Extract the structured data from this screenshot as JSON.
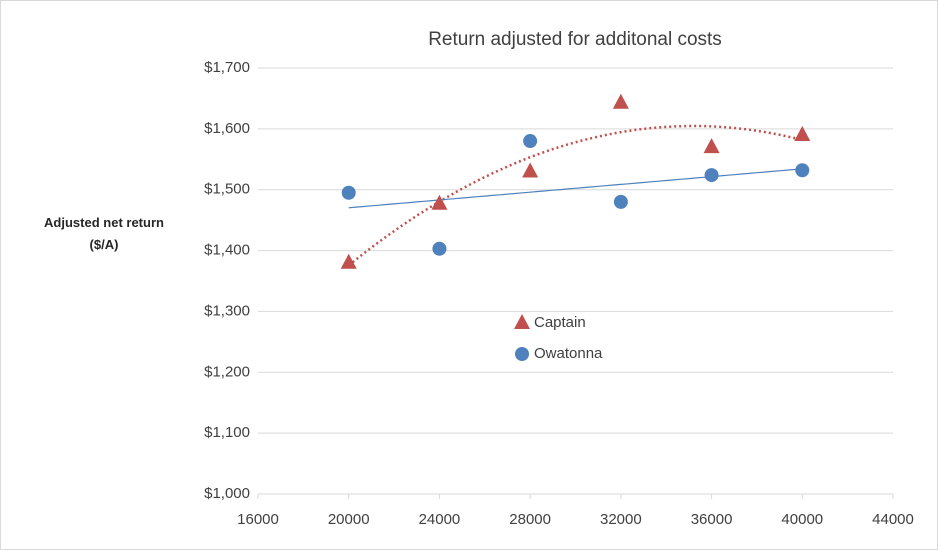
{
  "chart_data": {
    "type": "scatter",
    "title": "Return adjusted for additonal costs",
    "y_label": "Adjusted net return ($/A)",
    "x": [
      20000,
      24000,
      28000,
      32000,
      36000,
      40000
    ],
    "series": [
      {
        "name": "Captain",
        "color": "#c0504d",
        "marker": "triangle",
        "trendline": "poly2",
        "values": [
          1380,
          1477,
          1530,
          1643,
          1570,
          1590
        ]
      },
      {
        "name": "Owatonna",
        "color": "#4f81bd",
        "marker": "circle",
        "trendline": "linear",
        "values": [
          1495,
          1403,
          1580,
          1480,
          1524,
          1532
        ]
      }
    ],
    "xlim": [
      16000,
      44000
    ],
    "xticks": [
      16000,
      20000,
      24000,
      28000,
      32000,
      36000,
      40000,
      44000
    ],
    "ylim": [
      1000,
      1700
    ],
    "yticks": [
      {
        "value": 1000,
        "label": "$1,000"
      },
      {
        "value": 1100,
        "label": "$1,100"
      },
      {
        "value": 1200,
        "label": "$1,200"
      },
      {
        "value": 1300,
        "label": "$1,300"
      },
      {
        "value": 1400,
        "label": "$1,400"
      },
      {
        "value": 1500,
        "label": "$1,500"
      },
      {
        "value": 1600,
        "label": "$1,600"
      },
      {
        "value": 1700,
        "label": "$1,700"
      }
    ],
    "grid": true,
    "legend": "center"
  }
}
